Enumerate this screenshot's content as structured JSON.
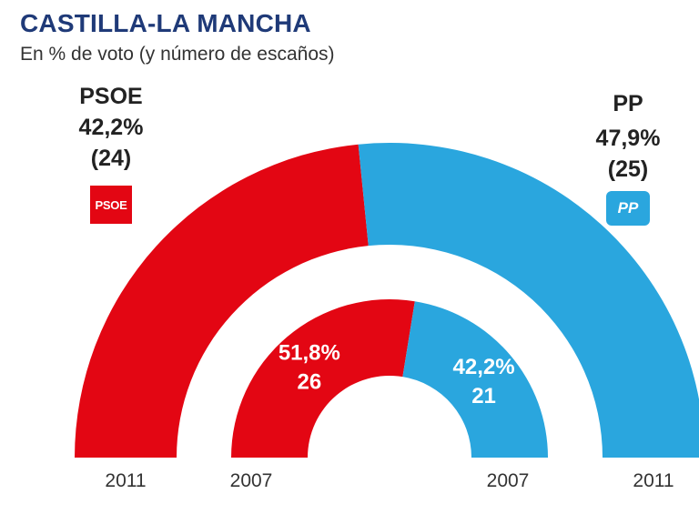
{
  "title": "CASTILLA-LA MANCHA",
  "subtitle": "En % de voto (y número de escaños)",
  "parties": {
    "psoe": {
      "name": "PSOE",
      "pct_2011": "42,2%",
      "seats_2011": "(24)",
      "logo_text": "PSOE",
      "color": "#e30613"
    },
    "pp": {
      "name": "PP",
      "pct_2011": "47,9%",
      "seats_2011": "(25)",
      "logo_text": "PP",
      "color": "#2aa6de"
    }
  },
  "chart_data": {
    "type": "pie",
    "subtype": "nested-half-donut",
    "title": "CASTILLA-LA MANCHA",
    "subtitle": "En % de voto (y número de escaños)",
    "rings": [
      {
        "year": "2011",
        "position": "outer",
        "series": [
          {
            "name": "PSOE",
            "value": 42.2,
            "seats": 24,
            "color": "#e30613"
          },
          {
            "name": "PP",
            "value": 47.9,
            "seats": 25,
            "color": "#2aa6de"
          }
        ]
      },
      {
        "year": "2007",
        "position": "inner",
        "series": [
          {
            "name": "PSOE",
            "value": 51.8,
            "seats": 26,
            "color": "#e30613",
            "label_pct": "51,8%",
            "label_seats": "26"
          },
          {
            "name": "PP",
            "value": 42.2,
            "seats": 21,
            "color": "#2aa6de",
            "label_pct": "42,2%",
            "label_seats": "21"
          }
        ]
      }
    ],
    "year_labels": [
      "2011",
      "2007",
      "2007",
      "2011"
    ]
  }
}
